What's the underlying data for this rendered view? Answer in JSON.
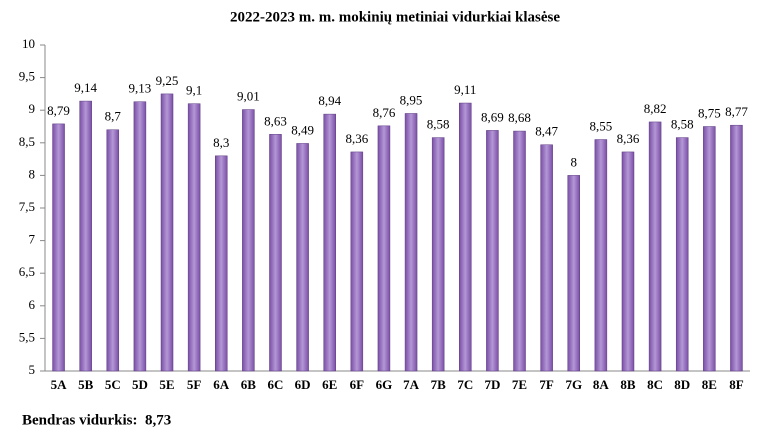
{
  "chart_data": {
    "type": "bar",
    "title": "2022-2023 m. m. mokinių metiniai vidurkiai klasėse",
    "categories": [
      "5A",
      "5B",
      "5C",
      "5D",
      "5E",
      "5F",
      "6A",
      "6B",
      "6C",
      "6D",
      "6E",
      "6F",
      "6G",
      "7A",
      "7B",
      "7C",
      "7D",
      "7E",
      "7F",
      "7G",
      "8A",
      "8B",
      "8C",
      "8D",
      "8E",
      "8F"
    ],
    "values": [
      8.79,
      9.14,
      8.7,
      9.13,
      9.25,
      9.1,
      8.3,
      9.01,
      8.63,
      8.49,
      8.94,
      8.36,
      8.76,
      8.95,
      8.58,
      9.11,
      8.69,
      8.68,
      8.47,
      8,
      8.55,
      8.36,
      8.82,
      8.58,
      8.75,
      8.77
    ],
    "value_labels": [
      "8,79",
      "9,14",
      "8,7",
      "9,13",
      "9,25",
      "9,1",
      "8,3",
      "9,01",
      "8,63",
      "8,49",
      "8,94",
      "8,36",
      "8,76",
      "8,95",
      "8,58",
      "9,11",
      "8,69",
      "8,68",
      "8,47",
      "8",
      "8,55",
      "8,36",
      "8,82",
      "8,58",
      "8,75",
      "8,77"
    ],
    "color": "#7a4fa6",
    "ylim": [
      5,
      10
    ],
    "yticks": [
      5,
      {
        "value": 5.5,
        "label": "5,5"
      },
      6,
      {
        "value": 6.5,
        "label": "6,5"
      },
      7,
      {
        "value": 7.5,
        "label": "7,5"
      },
      8,
      {
        "value": 8.5,
        "label": "8,5"
      },
      9,
      {
        "value": 9.5,
        "label": "9,5"
      },
      10
    ],
    "grid": false,
    "annotation": "Bendras vidurkis:  8,73"
  }
}
